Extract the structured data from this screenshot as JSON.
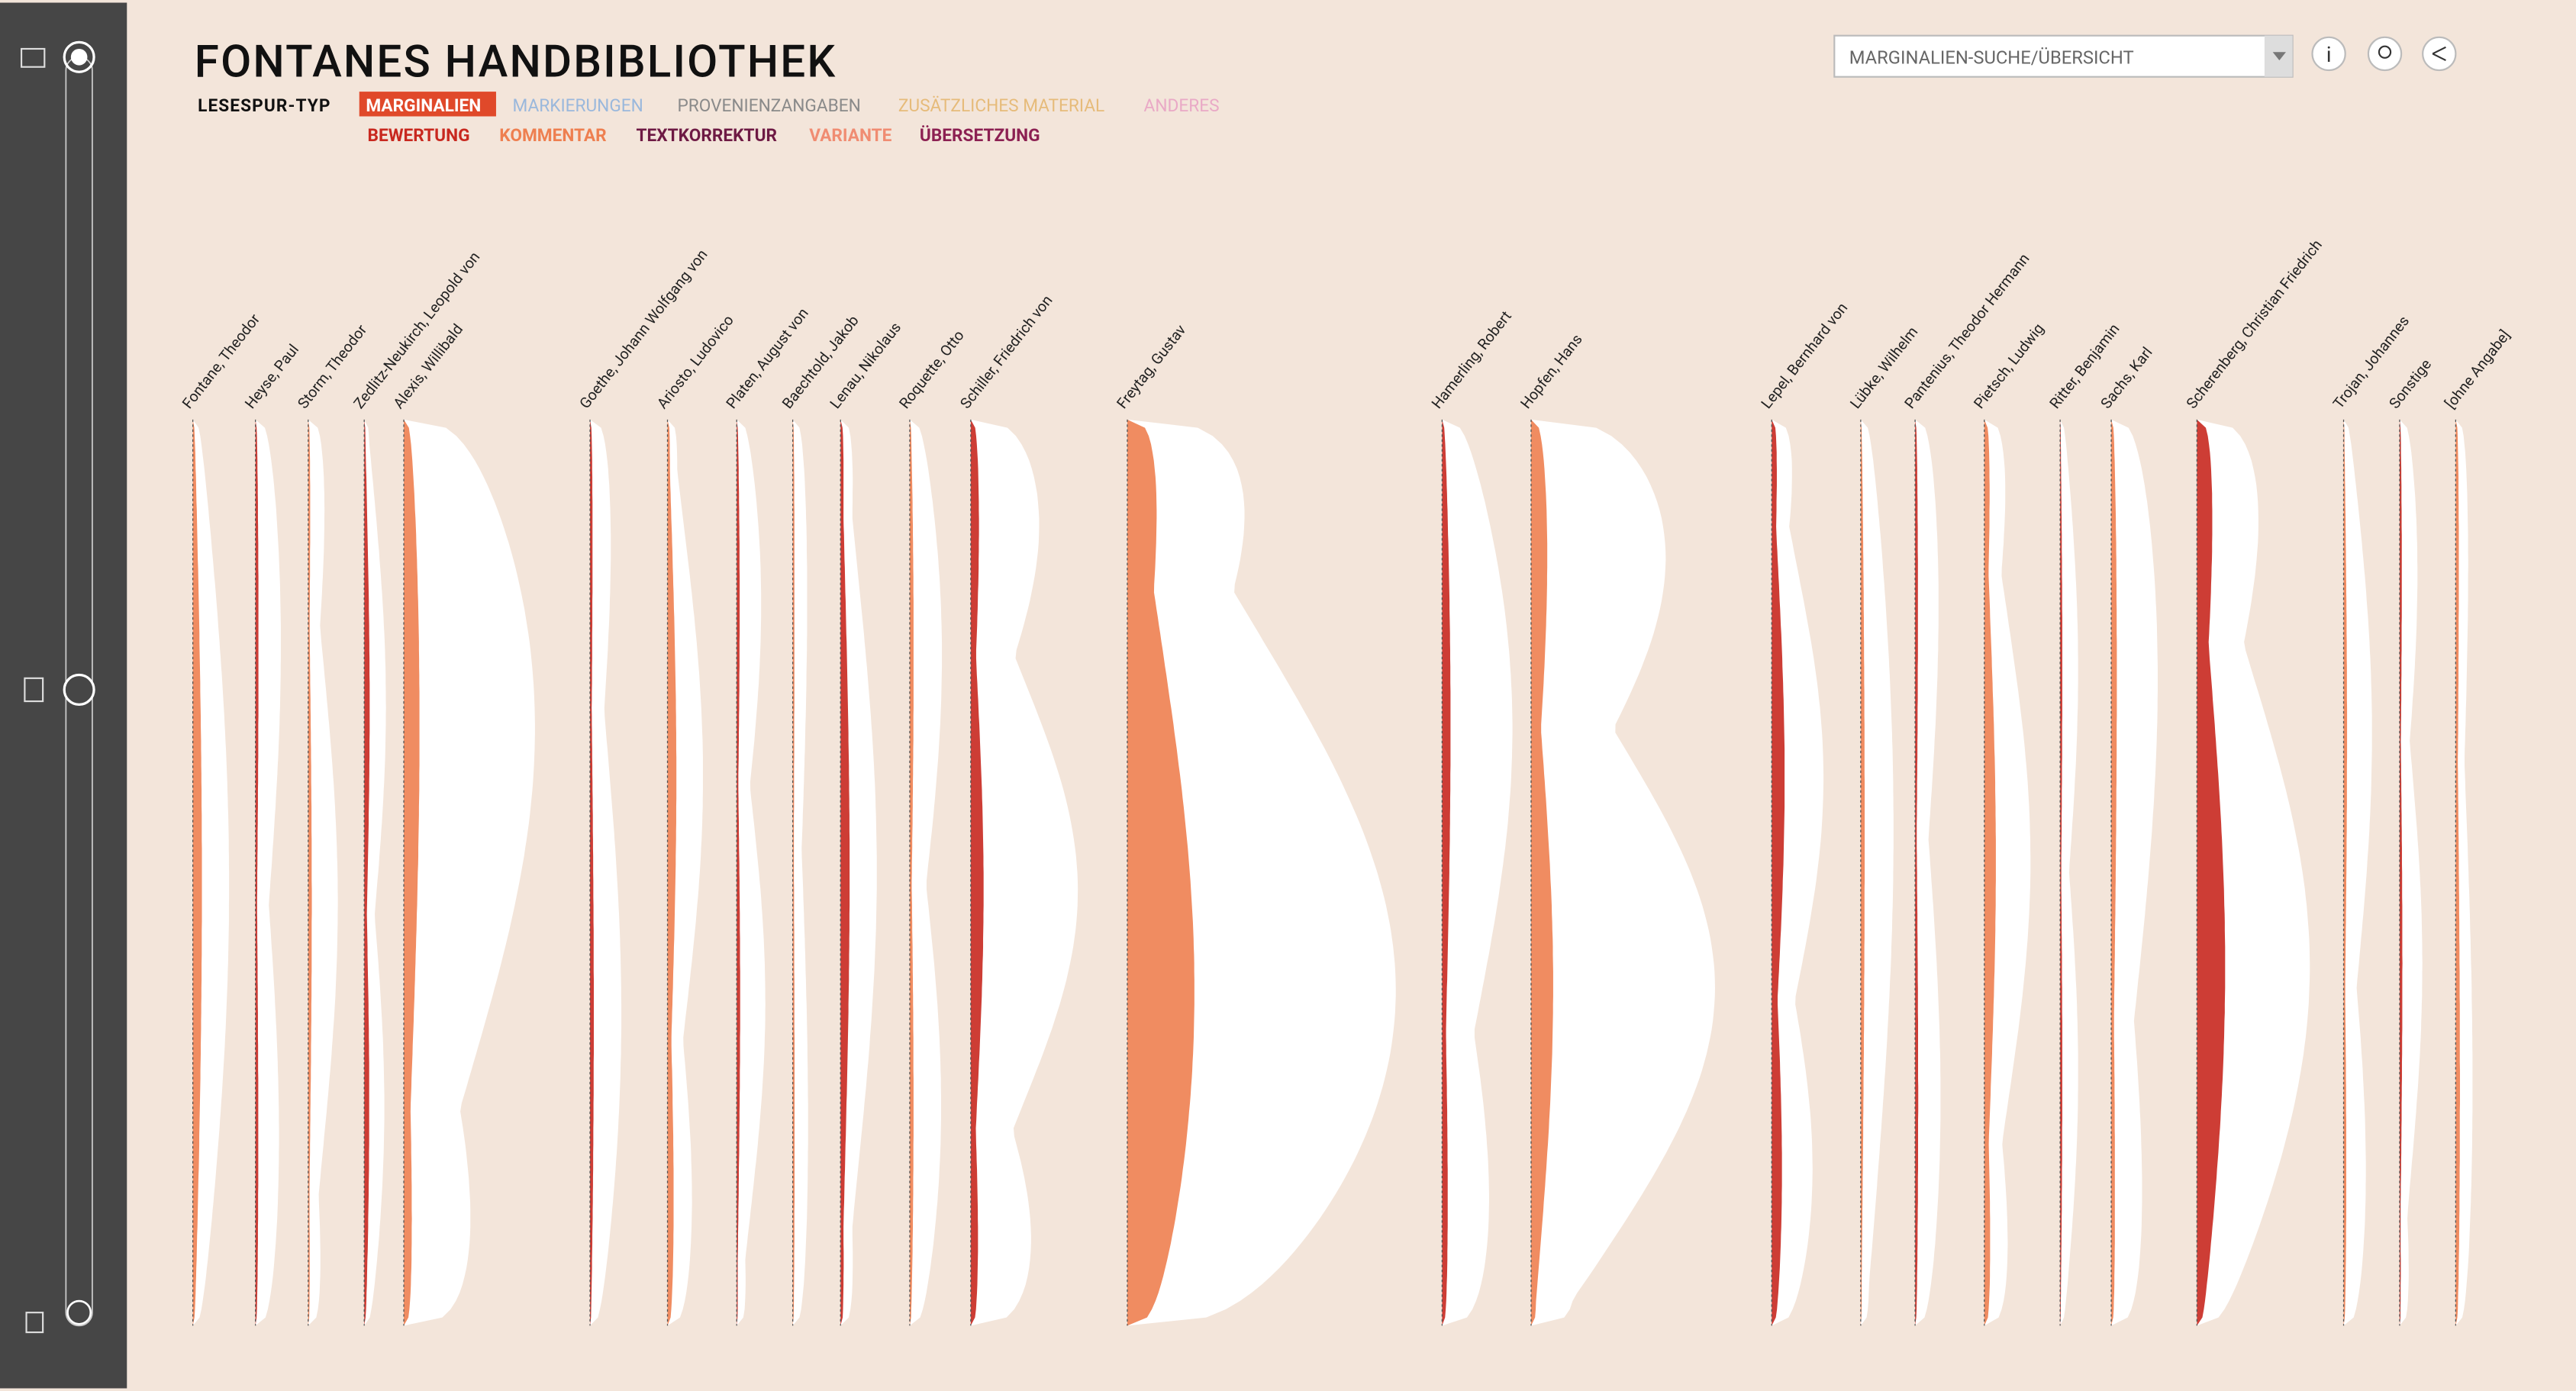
{
  "header": {
    "title": "FONTANES HANDBIBLIOTHEK",
    "filter_label": "LESESPUR-TYP",
    "types": [
      {
        "label": "MARGINALIEN",
        "color": "#e0492a"
      },
      {
        "label": "MARKIERUNGEN",
        "color": "#9ab8dc"
      },
      {
        "label": "PROVENIENZANGABEN",
        "color": "#8a8a8a"
      },
      {
        "label": "ZUSÄTZLICHES MATERIAL",
        "color": "#e6bb7a"
      },
      {
        "label": "ANDERES",
        "color": "#e9a9c6"
      }
    ],
    "subtypes": [
      {
        "label": "BEWERTUNG",
        "color": "#c8281f"
      },
      {
        "label": "KOMMENTAR",
        "color": "#ee7f50"
      },
      {
        "label": "TEXTKORREKTUR",
        "color": "#6e1a44"
      },
      {
        "label": "VARIANTE",
        "color": "#f08c72"
      },
      {
        "label": "ÜBERSETZUNG",
        "color": "#8c2052"
      }
    ]
  },
  "search": {
    "placeholder": "MARGINALIEN-SUCHE/ÜBERSICHT",
    "info": "i"
  },
  "authors": [
    "Fontane, Theodor",
    "Heyse, Paul",
    "Storm, Theodor",
    "Zedlitz-Neukirch, Leopold von",
    "Alexis, Willibald",
    "Goethe, Johann Wolfgang von",
    "Ariosto, Ludovico",
    "Platen, August von",
    "Baechtold, Jakob",
    "Lenau, Nikolaus",
    "Roquette, Otto",
    "Schiller, Friedrich von",
    "Freytag, Gustav",
    "Hamerling, Robert",
    "Hopfen, Hans",
    "Lepel, Bernhard von",
    "Lübke, Wilhelm",
    "Pantenius, Theodor Hermann",
    "Pietsch, Ludwig",
    "Ritter, Benjamin",
    "Sachs, Karl",
    "Scherenberg, Christian Friedrich",
    "Trojan, Johannes",
    "Sonstige",
    "[ohne Angabe]"
  ]
}
